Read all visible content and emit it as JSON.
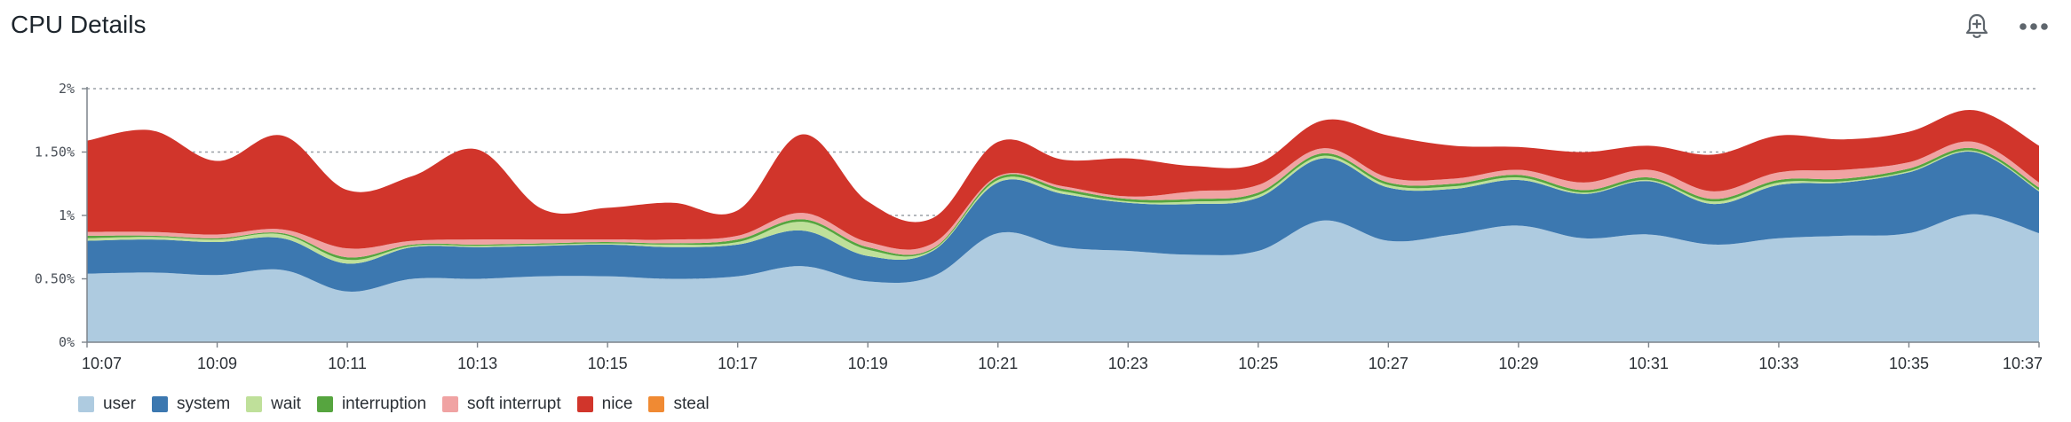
{
  "header": {
    "title": "CPU Details",
    "icons": [
      "add-alert-icon",
      "more-options-icon"
    ]
  },
  "chart_data": {
    "type": "area",
    "stacked": true,
    "x": [
      "10:07",
      "10:08",
      "10:09",
      "10:10",
      "10:11",
      "10:12",
      "10:13",
      "10:14",
      "10:15",
      "10:16",
      "10:17",
      "10:18",
      "10:19",
      "10:20",
      "10:21",
      "10:22",
      "10:23",
      "10:24",
      "10:25",
      "10:26",
      "10:27",
      "10:28",
      "10:29",
      "10:30",
      "10:31",
      "10:32",
      "10:33",
      "10:34",
      "10:35",
      "10:36",
      "10:37"
    ],
    "x_tick_labels": [
      "10:07",
      "10:09",
      "10:11",
      "10:13",
      "10:15",
      "10:17",
      "10:19",
      "10:21",
      "10:23",
      "10:25",
      "10:27",
      "10:29",
      "10:31",
      "10:33",
      "10:35",
      "10:37"
    ],
    "y_ticks": [
      0,
      0.5,
      1,
      1.5,
      2
    ],
    "y_tick_labels": [
      "0%",
      "0.50%",
      "1%",
      "1.50%",
      "2%"
    ],
    "ylim": [
      0,
      2
    ],
    "grid": "horizontal-dotted",
    "legend_position": "bottom-left",
    "series": [
      {
        "name": "user",
        "color": "#aecbe0",
        "values": [
          0.54,
          0.55,
          0.53,
          0.57,
          0.4,
          0.5,
          0.5,
          0.52,
          0.52,
          0.5,
          0.52,
          0.6,
          0.48,
          0.52,
          0.86,
          0.75,
          0.72,
          0.69,
          0.72,
          0.96,
          0.8,
          0.85,
          0.92,
          0.82,
          0.85,
          0.77,
          0.82,
          0.84,
          0.86,
          1.01,
          0.86
        ]
      },
      {
        "name": "system",
        "color": "#3c78b0",
        "values": [
          0.26,
          0.26,
          0.26,
          0.25,
          0.22,
          0.25,
          0.25,
          0.24,
          0.25,
          0.25,
          0.25,
          0.28,
          0.2,
          0.2,
          0.4,
          0.42,
          0.38,
          0.4,
          0.42,
          0.49,
          0.42,
          0.36,
          0.36,
          0.35,
          0.42,
          0.32,
          0.42,
          0.42,
          0.48,
          0.49,
          0.33
        ]
      },
      {
        "name": "wait",
        "color": "#bfe09a",
        "values": [
          0.02,
          0.02,
          0.02,
          0.03,
          0.03,
          0.01,
          0.01,
          0.01,
          0.01,
          0.02,
          0.02,
          0.07,
          0.05,
          0.01,
          0.02,
          0.02,
          0.01,
          0.02,
          0.02,
          0.02,
          0.02,
          0.02,
          0.02,
          0.01,
          0.01,
          0.02,
          0.02,
          0.01,
          0.01,
          0.01,
          0.01
        ]
      },
      {
        "name": "interruption",
        "color": "#56a53f",
        "values": [
          0.02,
          0.01,
          0.01,
          0.01,
          0.02,
          0.01,
          0.01,
          0.01,
          0.01,
          0.01,
          0.02,
          0.02,
          0.02,
          0.01,
          0.02,
          0.02,
          0.02,
          0.02,
          0.02,
          0.02,
          0.02,
          0.02,
          0.02,
          0.02,
          0.02,
          0.02,
          0.02,
          0.02,
          0.02,
          0.02,
          0.02
        ]
      },
      {
        "name": "soft interrupt",
        "color": "#f0a3a3",
        "values": [
          0.03,
          0.03,
          0.03,
          0.03,
          0.07,
          0.03,
          0.04,
          0.03,
          0.02,
          0.03,
          0.03,
          0.05,
          0.04,
          0.04,
          0.01,
          0.02,
          0.02,
          0.06,
          0.06,
          0.04,
          0.04,
          0.04,
          0.04,
          0.06,
          0.06,
          0.06,
          0.06,
          0.07,
          0.05,
          0.05,
          0.04
        ]
      },
      {
        "name": "nice",
        "color": "#d1352b",
        "values": [
          0.72,
          0.8,
          0.58,
          0.74,
          0.46,
          0.51,
          0.71,
          0.24,
          0.25,
          0.29,
          0.2,
          0.62,
          0.32,
          0.2,
          0.27,
          0.21,
          0.3,
          0.2,
          0.17,
          0.22,
          0.33,
          0.26,
          0.18,
          0.24,
          0.19,
          0.29,
          0.29,
          0.24,
          0.24,
          0.25,
          0.29
        ]
      },
      {
        "name": "steal",
        "color": "#f08a33",
        "values": [
          0,
          0,
          0,
          0,
          0,
          0,
          0,
          0,
          0,
          0,
          0,
          0,
          0,
          0,
          0,
          0,
          0,
          0,
          0,
          0,
          0,
          0,
          0,
          0,
          0,
          0,
          0,
          0,
          0,
          0,
          0
        ]
      }
    ]
  }
}
